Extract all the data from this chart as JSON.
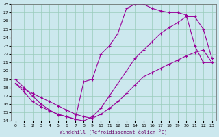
{
  "xlabel": "Windchill (Refroidissement éolien,°C)",
  "background_color": "#cce8ee",
  "line_color": "#990099",
  "grid_color": "#99ccbb",
  "xlim": [
    -0.5,
    23.5
  ],
  "ylim": [
    14,
    28
  ],
  "xticks": [
    0,
    1,
    2,
    3,
    4,
    5,
    6,
    7,
    8,
    9,
    10,
    11,
    12,
    13,
    14,
    15,
    16,
    17,
    18,
    19,
    20,
    21,
    22,
    23
  ],
  "yticks": [
    14,
    15,
    16,
    17,
    18,
    19,
    20,
    21,
    22,
    23,
    24,
    25,
    26,
    27,
    28
  ],
  "line1_x": [
    0,
    1,
    2,
    3,
    4,
    5,
    6,
    7,
    8,
    9,
    10,
    11,
    12,
    13,
    14,
    15,
    16,
    17,
    18,
    19,
    20,
    21,
    22,
    23
  ],
  "line1_y": [
    19.0,
    18.0,
    17.0,
    16.0,
    15.3,
    14.7,
    14.5,
    14.2,
    18.7,
    19.0,
    22.0,
    23.0,
    24.5,
    27.5,
    28.0,
    28.0,
    27.5,
    27.2,
    27.0,
    27.0,
    26.7,
    23.0,
    21.0,
    21.0
  ],
  "line2_x": [
    0,
    1,
    2,
    3,
    4,
    5,
    6,
    7,
    8,
    9,
    10,
    11,
    12,
    13,
    14,
    15,
    16,
    17,
    18,
    19,
    20,
    21,
    22,
    23
  ],
  "line2_y": [
    18.5,
    17.8,
    17.3,
    16.8,
    16.3,
    15.8,
    15.3,
    14.8,
    14.5,
    14.3,
    14.8,
    15.5,
    16.3,
    17.3,
    18.3,
    19.3,
    19.8,
    20.3,
    20.8,
    21.3,
    21.8,
    22.2,
    22.5,
    21.0
  ],
  "line3_x": [
    0,
    1,
    2,
    3,
    4,
    5,
    6,
    7,
    8,
    9,
    10,
    11,
    12,
    13,
    14,
    15,
    16,
    17,
    18,
    19,
    20,
    21,
    22,
    23
  ],
  "line3_y": [
    18.5,
    17.5,
    16.3,
    15.7,
    15.2,
    14.8,
    14.5,
    14.2,
    14.0,
    14.5,
    15.5,
    17.0,
    18.5,
    20.0,
    21.5,
    22.5,
    23.5,
    24.5,
    25.2,
    25.8,
    26.5,
    26.5,
    25.0,
    21.5
  ],
  "marker": "+"
}
